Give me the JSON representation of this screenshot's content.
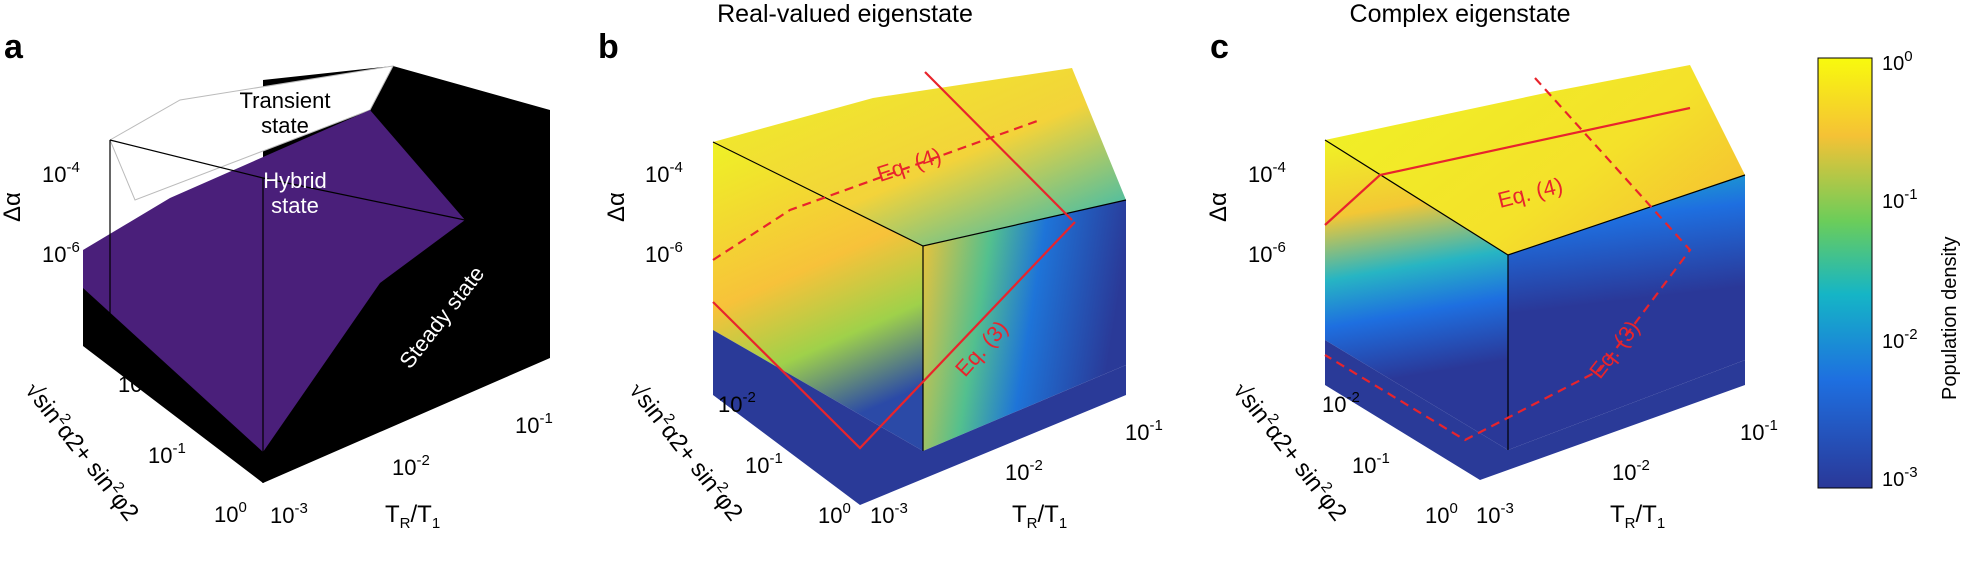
{
  "panels": {
    "a": {
      "label": "a",
      "regions": {
        "transient_1": "Transient",
        "transient_2": "state",
        "hybrid_1": "Hybrid",
        "hybrid_2": "state",
        "steady": "Steady state"
      },
      "colors": {
        "transient": "#ffffff",
        "hybrid": "#4a1f7a",
        "steady": "#000000"
      }
    },
    "b": {
      "label": "b",
      "title": "Real-valued eigenstate",
      "eq3": "Eq. (3)",
      "eq4": "Eq. (4)"
    },
    "c": {
      "label": "c",
      "title": "Complex eigenstate",
      "eq3": "Eq. (3)",
      "eq4": "Eq. (4)"
    }
  },
  "axes": {
    "vertical": {
      "base": "10",
      "ticks": [
        {
          "exp": "-4"
        },
        {
          "exp": "-6"
        }
      ],
      "label": "Δα"
    },
    "depth": {
      "base": "10",
      "ticks": [
        {
          "exp": "-2"
        },
        {
          "exp": "-1"
        },
        {
          "exp": "0"
        }
      ],
      "label_root": "√",
      "label_sin1": "sin",
      "label_frac1_num": "α",
      "label_frac1_den": "2",
      "label_plus": "+ sin",
      "label_frac2_num": "φ",
      "label_frac2_den": "2",
      "label_sq": "2"
    },
    "horizontal": {
      "base": "10",
      "ticks": [
        {
          "exp": "-3"
        },
        {
          "exp": "-2"
        },
        {
          "exp": "-1"
        }
      ],
      "label_T": "T",
      "label_sub1": "R",
      "label_slash": "/T",
      "label_sub2": "1"
    }
  },
  "colorbar": {
    "label": "Population density",
    "base": "10",
    "ticks": [
      {
        "exp": "0"
      },
      {
        "exp": "-1"
      },
      {
        "exp": "-2"
      },
      {
        "exp": "-3"
      }
    ],
    "colors": [
      "#f8fa0d",
      "#f5c235",
      "#6bcd5a",
      "#15b5c6",
      "#1e6fe0",
      "#2a3898"
    ]
  },
  "line_color": "#e8242c"
}
